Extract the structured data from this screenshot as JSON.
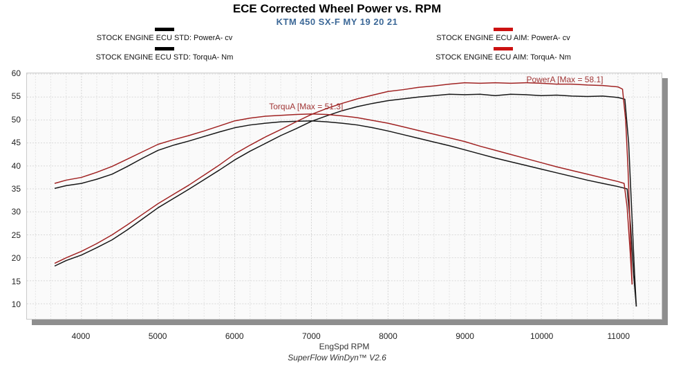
{
  "header": {
    "title": "ECE Corrected Wheel Power vs. RPM",
    "subtitle": "KTM 450 SX-F MY 19 20 21"
  },
  "legend": {
    "std": [
      {
        "label": "STOCK ENGINE ECU STD: PowerA- cv",
        "color": "#000000"
      },
      {
        "label": "STOCK ENGINE ECU STD: TorquA- Nm",
        "color": "#000000"
      }
    ],
    "aim": [
      {
        "label": "STOCK ENGINE ECU AIM: PowerA- cv",
        "color": "#cc1111"
      },
      {
        "label": "STOCK ENGINE ECU AIM: TorquA- Nm",
        "color": "#cc1111"
      }
    ]
  },
  "footer": {
    "text": "SuperFlow WinDyn™ V2.6"
  },
  "chart_data": {
    "type": "line",
    "title": "ECE Corrected Wheel Power vs. RPM",
    "subtitle": "KTM 450 SX-F MY 19 20 21",
    "xlabel": "EngSpd RPM",
    "ylabel": "",
    "xlim": [
      3289,
      11569
    ],
    "ylim": [
      6.7,
      60.15
    ],
    "x_ticks": [
      4000,
      5000,
      6000,
      7000,
      8000,
      9000,
      10000,
      11000
    ],
    "y_ticks": [
      60,
      55,
      50,
      45,
      40,
      35,
      30,
      25,
      20,
      15,
      10
    ],
    "grid": {
      "x_start": 3400,
      "x_end": 11400,
      "x_step": 200,
      "y_start": 10,
      "y_end": 60,
      "y_step": 5,
      "minor_color": "#e3e3e3",
      "major_color": "#d2d2d2",
      "h_color": "#d8d8d8"
    },
    "legend_position": "top",
    "annotations": [
      {
        "text": "TorquA [Max = 51.3]",
        "rpm": 6450,
        "value": 53.9,
        "color": "#a03434"
      },
      {
        "text": "PowerA [Max = 58.1]",
        "rpm": 9800,
        "value": 59.7,
        "color": "#a03434"
      }
    ],
    "series": [
      {
        "name": "STOCK ENGINE ECU STD: PowerA- cv",
        "color": "#161616",
        "width": 1.5,
        "points": [
          [
            3650,
            18.2
          ],
          [
            3800,
            19.4
          ],
          [
            4000,
            20.6
          ],
          [
            4200,
            22.2
          ],
          [
            4400,
            23.9
          ],
          [
            4600,
            26.1
          ],
          [
            4800,
            28.5
          ],
          [
            5000,
            30.9
          ],
          [
            5200,
            32.9
          ],
          [
            5400,
            34.9
          ],
          [
            5600,
            37.0
          ],
          [
            5800,
            39.1
          ],
          [
            6000,
            41.3
          ],
          [
            6200,
            43.2
          ],
          [
            6400,
            44.9
          ],
          [
            6600,
            46.6
          ],
          [
            6800,
            48.1
          ],
          [
            7000,
            49.7
          ],
          [
            7200,
            50.9
          ],
          [
            7400,
            52.0
          ],
          [
            7600,
            52.9
          ],
          [
            7800,
            53.6
          ],
          [
            8000,
            54.2
          ],
          [
            8200,
            54.6
          ],
          [
            8400,
            55.0
          ],
          [
            8600,
            55.3
          ],
          [
            8800,
            55.6
          ],
          [
            9000,
            55.5
          ],
          [
            9200,
            55.6
          ],
          [
            9400,
            55.3
          ],
          [
            9600,
            55.6
          ],
          [
            9800,
            55.5
          ],
          [
            10000,
            55.3
          ],
          [
            10200,
            55.4
          ],
          [
            10400,
            55.2
          ],
          [
            10600,
            55.1
          ],
          [
            10800,
            55.2
          ],
          [
            11000,
            54.9
          ],
          [
            11090,
            54.5
          ],
          [
            11140,
            45.0
          ],
          [
            11180,
            30.0
          ],
          [
            11215,
            17.0
          ],
          [
            11240,
            9.4
          ]
        ]
      },
      {
        "name": "STOCK ENGINE ECU STD: TorquA- Nm",
        "color": "#161616",
        "width": 1.5,
        "points": [
          [
            3650,
            35.1
          ],
          [
            3800,
            35.7
          ],
          [
            4000,
            36.2
          ],
          [
            4200,
            37.1
          ],
          [
            4400,
            38.2
          ],
          [
            4600,
            39.9
          ],
          [
            4800,
            41.7
          ],
          [
            5000,
            43.4
          ],
          [
            5200,
            44.5
          ],
          [
            5400,
            45.4
          ],
          [
            5600,
            46.4
          ],
          [
            5800,
            47.4
          ],
          [
            6000,
            48.3
          ],
          [
            6200,
            48.9
          ],
          [
            6400,
            49.3
          ],
          [
            6600,
            49.6
          ],
          [
            6800,
            49.7
          ],
          [
            7000,
            49.8
          ],
          [
            7200,
            49.6
          ],
          [
            7400,
            49.3
          ],
          [
            7600,
            48.9
          ],
          [
            7800,
            48.3
          ],
          [
            8000,
            47.6
          ],
          [
            8200,
            46.8
          ],
          [
            8400,
            46.0
          ],
          [
            8600,
            45.2
          ],
          [
            8800,
            44.4
          ],
          [
            9000,
            43.5
          ],
          [
            9200,
            42.6
          ],
          [
            9400,
            41.7
          ],
          [
            9600,
            40.9
          ],
          [
            9800,
            40.1
          ],
          [
            10000,
            39.3
          ],
          [
            10200,
            38.5
          ],
          [
            10400,
            37.7
          ],
          [
            10600,
            36.9
          ],
          [
            10800,
            36.2
          ],
          [
            11000,
            35.5
          ],
          [
            11120,
            35.0
          ],
          [
            11165,
            27.0
          ],
          [
            11205,
            16.0
          ],
          [
            11240,
            9.4
          ]
        ]
      },
      {
        "name": "STOCK ENGINE ECU AIM: PowerA- cv",
        "color": "#a02222",
        "width": 1.5,
        "points": [
          [
            3650,
            18.8
          ],
          [
            3800,
            20.0
          ],
          [
            4000,
            21.4
          ],
          [
            4200,
            23.1
          ],
          [
            4400,
            25.0
          ],
          [
            4600,
            27.2
          ],
          [
            4800,
            29.5
          ],
          [
            5000,
            31.8
          ],
          [
            5200,
            33.8
          ],
          [
            5400,
            35.8
          ],
          [
            5600,
            38.0
          ],
          [
            5800,
            40.2
          ],
          [
            6000,
            42.6
          ],
          [
            6200,
            44.5
          ],
          [
            6400,
            46.3
          ],
          [
            6600,
            47.9
          ],
          [
            6800,
            49.6
          ],
          [
            7000,
            51.2
          ],
          [
            7200,
            52.5
          ],
          [
            7400,
            53.6
          ],
          [
            7600,
            54.6
          ],
          [
            7800,
            55.4
          ],
          [
            8000,
            56.2
          ],
          [
            8200,
            56.6
          ],
          [
            8400,
            57.1
          ],
          [
            8600,
            57.4
          ],
          [
            8800,
            57.8
          ],
          [
            9000,
            58.1
          ],
          [
            9200,
            58.0
          ],
          [
            9400,
            58.1
          ],
          [
            9600,
            58.0
          ],
          [
            9800,
            58.1
          ],
          [
            10000,
            58.0
          ],
          [
            10200,
            57.8
          ],
          [
            10400,
            57.8
          ],
          [
            10600,
            57.6
          ],
          [
            10800,
            57.5
          ],
          [
            11000,
            57.2
          ],
          [
            11060,
            56.7
          ],
          [
            11100,
            50.0
          ],
          [
            11130,
            40.0
          ],
          [
            11160,
            26.0
          ],
          [
            11185,
            14.2
          ]
        ]
      },
      {
        "name": "STOCK ENGINE ECU AIM: TorquA- Nm",
        "color": "#a02222",
        "width": 1.5,
        "points": [
          [
            3650,
            36.2
          ],
          [
            3800,
            36.9
          ],
          [
            4000,
            37.5
          ],
          [
            4200,
            38.6
          ],
          [
            4400,
            39.9
          ],
          [
            4600,
            41.5
          ],
          [
            4800,
            43.1
          ],
          [
            5000,
            44.7
          ],
          [
            5200,
            45.7
          ],
          [
            5400,
            46.6
          ],
          [
            5600,
            47.6
          ],
          [
            5800,
            48.7
          ],
          [
            6000,
            49.8
          ],
          [
            6200,
            50.4
          ],
          [
            6400,
            50.8
          ],
          [
            6600,
            51.0
          ],
          [
            6800,
            51.2
          ],
          [
            7000,
            51.3
          ],
          [
            7200,
            51.2
          ],
          [
            7400,
            50.9
          ],
          [
            7600,
            50.5
          ],
          [
            7800,
            49.9
          ],
          [
            8000,
            49.3
          ],
          [
            8200,
            48.5
          ],
          [
            8400,
            47.7
          ],
          [
            8600,
            46.9
          ],
          [
            8800,
            46.1
          ],
          [
            9000,
            45.3
          ],
          [
            9200,
            44.3
          ],
          [
            9400,
            43.4
          ],
          [
            9600,
            42.5
          ],
          [
            9800,
            41.6
          ],
          [
            10000,
            40.7
          ],
          [
            10200,
            39.8
          ],
          [
            10400,
            39.0
          ],
          [
            10600,
            38.2
          ],
          [
            10800,
            37.4
          ],
          [
            11000,
            36.6
          ],
          [
            11080,
            36.2
          ],
          [
            11120,
            31.0
          ],
          [
            11160,
            21.0
          ],
          [
            11185,
            14.2
          ]
        ]
      }
    ]
  }
}
